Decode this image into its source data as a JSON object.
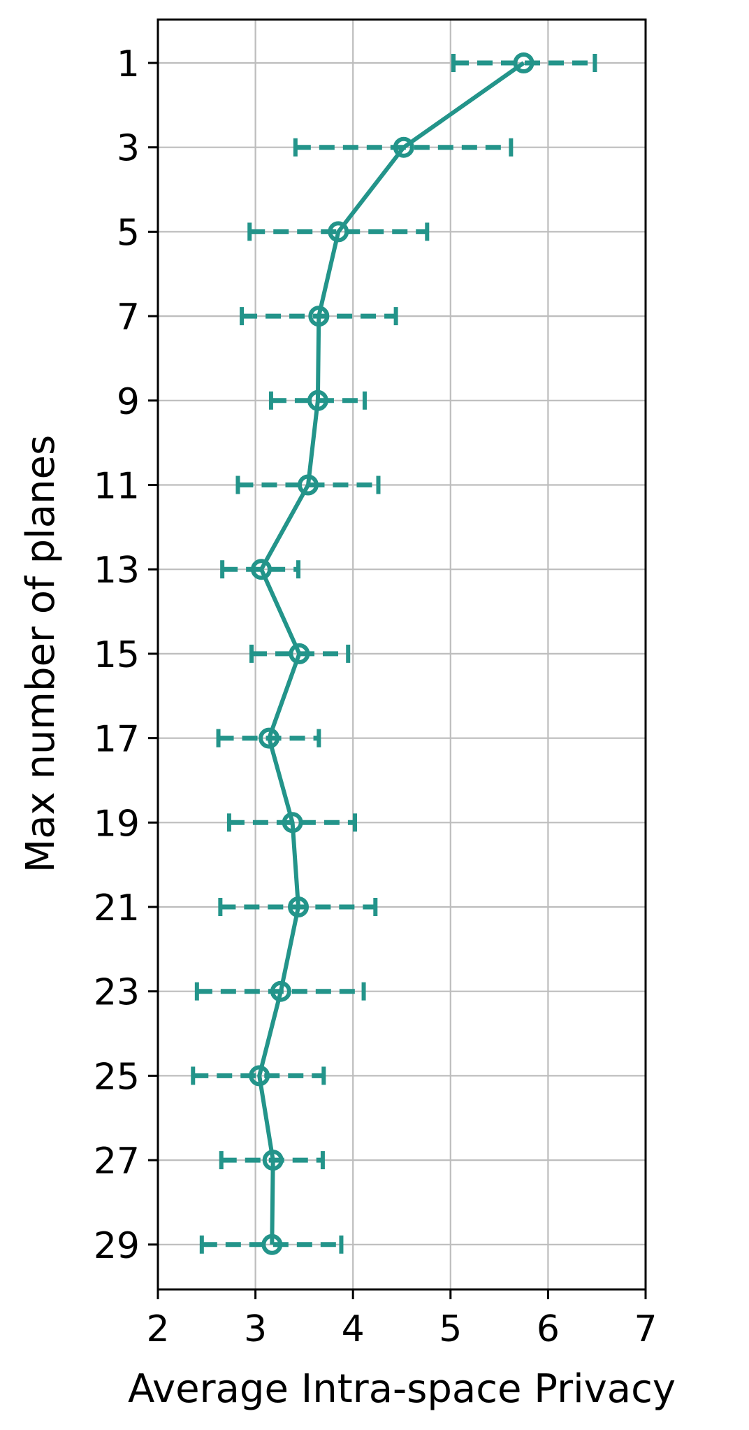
{
  "chart_data": {
    "type": "line",
    "xlabel": "Average Intra-space Privacy",
    "ylabel": "Max number of planes",
    "xlim": [
      2,
      7
    ],
    "xticks": [
      2,
      3,
      4,
      5,
      6,
      7
    ],
    "y_categories": [
      1,
      3,
      5,
      7,
      9,
      11,
      13,
      15,
      17,
      19,
      21,
      23,
      25,
      27,
      29
    ],
    "y_inverted": true,
    "grid": true,
    "color": "#23948a",
    "error_bar_style": "dashed with caps",
    "marker": "open-circle",
    "series": [
      {
        "points": [
          {
            "y": 1,
            "x": 5.75,
            "xerr_low": 5.03,
            "xerr_high": 6.48
          },
          {
            "y": 3,
            "x": 4.52,
            "xerr_low": 3.41,
            "xerr_high": 5.62
          },
          {
            "y": 5,
            "x": 3.85,
            "xerr_low": 2.94,
            "xerr_high": 4.76
          },
          {
            "y": 7,
            "x": 3.65,
            "xerr_low": 2.86,
            "xerr_high": 4.44
          },
          {
            "y": 9,
            "x": 3.64,
            "xerr_low": 3.16,
            "xerr_high": 4.12
          },
          {
            "y": 11,
            "x": 3.54,
            "xerr_low": 2.82,
            "xerr_high": 4.26
          },
          {
            "y": 13,
            "x": 3.06,
            "xerr_low": 2.66,
            "xerr_high": 3.44
          },
          {
            "y": 15,
            "x": 3.45,
            "xerr_low": 2.96,
            "xerr_high": 3.95
          },
          {
            "y": 17,
            "x": 3.14,
            "xerr_low": 2.62,
            "xerr_high": 3.65
          },
          {
            "y": 19,
            "x": 3.38,
            "xerr_low": 2.73,
            "xerr_high": 4.02
          },
          {
            "y": 21,
            "x": 3.44,
            "xerr_low": 2.64,
            "xerr_high": 4.23
          },
          {
            "y": 23,
            "x": 3.26,
            "xerr_low": 2.4,
            "xerr_high": 4.11
          },
          {
            "y": 25,
            "x": 3.04,
            "xerr_low": 2.36,
            "xerr_high": 3.7
          },
          {
            "y": 27,
            "x": 3.18,
            "xerr_low": 2.65,
            "xerr_high": 3.69
          },
          {
            "y": 29,
            "x": 3.17,
            "xerr_low": 2.45,
            "xerr_high": 3.88
          }
        ]
      }
    ]
  }
}
